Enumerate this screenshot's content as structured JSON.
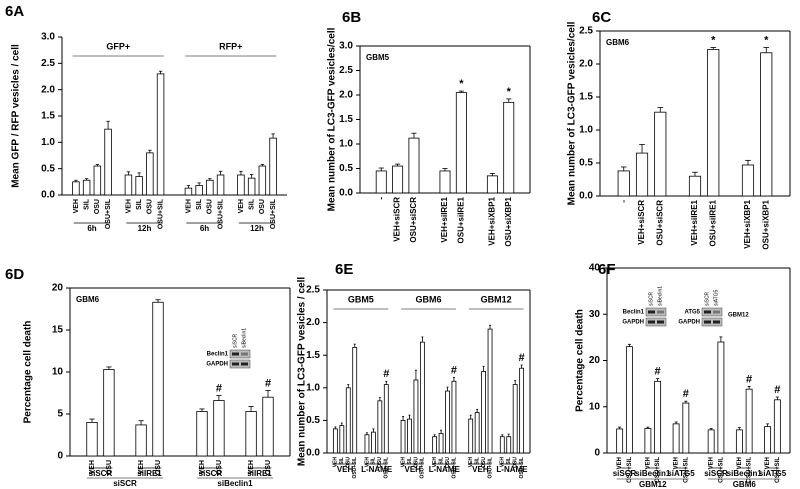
{
  "chart_data": [
    {
      "type": "bar",
      "title": "6A",
      "y_label": "Mean GFP / RFP vesicles / cell",
      "color": "#ffffff",
      "frame": false,
      "section_position": "top",
      "ylim": [
        0,
        3
      ],
      "yticks": [
        {
          "value": 0,
          "label": "0.0"
        },
        {
          "value": 0.5,
          "label": "0.5"
        },
        {
          "value": 1,
          "label": "1.0"
        },
        {
          "value": 1.5,
          "label": "1.5"
        },
        {
          "value": 2,
          "label": "2.0"
        },
        {
          "value": 2.5,
          "label": "2.5"
        },
        {
          "value": 3,
          "label": "3.0"
        }
      ],
      "sections": [
        {
          "label": "GFP+",
          "groups": [
            {
              "label": "6h",
              "categories": [
                "VEH",
                "SIL",
                "OSU",
                "OSU+SIL"
              ],
              "values": [
                0.25,
                0.28,
                0.55,
                1.25
              ],
              "errors": [
                0.03,
                0.03,
                0.03,
                0.15
              ]
            },
            {
              "label": "12h",
              "categories": [
                "VEH",
                "SIL",
                "OSU",
                "OSU+SIL"
              ],
              "values": [
                0.38,
                0.35,
                0.8,
                2.3
              ],
              "errors": [
                0.06,
                0.07,
                0.05,
                0.05
              ]
            }
          ]
        },
        {
          "label": "RFP+",
          "groups": [
            {
              "label": "6h",
              "categories": [
                "VEH",
                "SIL",
                "OSU",
                "OSU+SIL"
              ],
              "values": [
                0.13,
                0.18,
                0.28,
                0.38
              ],
              "errors": [
                0.05,
                0.05,
                0.03,
                0.07
              ]
            },
            {
              "label": "12h",
              "categories": [
                "VEH",
                "SIL",
                "OSU",
                "OSU+SIL"
              ],
              "values": [
                0.38,
                0.32,
                0.55,
                1.08
              ],
              "errors": [
                0.07,
                0.07,
                0.03,
                0.08
              ]
            }
          ]
        }
      ]
    },
    {
      "type": "bar",
      "title": "6B",
      "y_label": "Mean number of LC3-GFP vesicles/cell",
      "annotation": "GBM5",
      "color": "#ffffff",
      "frame": true,
      "ylim": [
        0,
        3
      ],
      "yticks": [
        {
          "value": 0,
          "label": "0.0"
        },
        {
          "value": 0.5,
          "label": "0.5"
        },
        {
          "value": 1,
          "label": "1.0"
        },
        {
          "value": 1.5,
          "label": "1.5"
        },
        {
          "value": 2,
          "label": "2.0"
        },
        {
          "value": 2.5,
          "label": "2.5"
        },
        {
          "value": 3,
          "label": "3.0"
        }
      ],
      "sections": [
        {
          "groups": [
            {
              "categories": [
                "-",
                "VEH+siSCR",
                "OSU+siSCR"
              ],
              "values": [
                0.45,
                0.55,
                1.12
              ],
              "errors": [
                0.06,
                0.04,
                0.1
              ],
              "markers": [
                null,
                null,
                null
              ]
            },
            {
              "categories": [
                "VEH+siIRE1",
                "OSU+siIRE1"
              ],
              "values": [
                0.45,
                2.05
              ],
              "errors": [
                0.05,
                0.03
              ],
              "markers": [
                null,
                "*"
              ]
            },
            {
              "categories": [
                "VEH+siXBP1",
                "OSU+siXBP1"
              ],
              "values": [
                0.35,
                1.85
              ],
              "errors": [
                0.05,
                0.07
              ],
              "markers": [
                null,
                "*"
              ]
            }
          ]
        }
      ]
    },
    {
      "type": "bar",
      "title": "6C",
      "y_label": "Mean number of LC3-GFP vesicles/cell",
      "annotation": "GBM6",
      "color": "#ffffff",
      "frame": true,
      "ylim": [
        0,
        2.5
      ],
      "yticks": [
        {
          "value": 0,
          "label": "0.0"
        },
        {
          "value": 0.5,
          "label": "0.5"
        },
        {
          "value": 1,
          "label": "1.0"
        },
        {
          "value": 1.5,
          "label": "1.5"
        },
        {
          "value": 2,
          "label": "2.0"
        },
        {
          "value": 2.5,
          "label": "2.5"
        }
      ],
      "sections": [
        {
          "groups": [
            {
              "categories": [
                "-",
                "VEH+siSCR",
                "OSU+siSCR"
              ],
              "values": [
                0.38,
                0.65,
                1.27
              ],
              "errors": [
                0.06,
                0.13,
                0.07
              ],
              "markers": [
                null,
                null,
                null
              ]
            },
            {
              "categories": [
                "VEH+siIRE1",
                "OSU+siIRE1"
              ],
              "values": [
                0.3,
                2.22
              ],
              "errors": [
                0.06,
                0.03
              ],
              "markers": [
                null,
                "*"
              ]
            },
            {
              "categories": [
                "VEH+siXBP1",
                "OSU+siXBP1"
              ],
              "values": [
                0.47,
                2.17
              ],
              "errors": [
                0.07,
                0.08
              ],
              "markers": [
                null,
                "*"
              ]
            }
          ]
        }
      ]
    },
    {
      "type": "bar",
      "title": "6D",
      "y_label": "Percentage cell death",
      "annotation": "GBM6",
      "color": "#ffffff",
      "frame": true,
      "section_position": "bottom",
      "ylim": [
        0,
        20
      ],
      "yticks": [
        0,
        5,
        10,
        15,
        20
      ],
      "insets": [
        {
          "lanes": [
            "siSCR",
            "siBeclin1"
          ],
          "rows": [
            "Beclin1",
            "GAPDH"
          ]
        }
      ],
      "sections": [
        {
          "label": "siSCR",
          "groups": [
            {
              "label": "siSCR",
              "categories": [
                "VEH",
                "OSU"
              ],
              "values": [
                4,
                10.3
              ],
              "errors": [
                0.4,
                0.3
              ],
              "markers": [
                null,
                null
              ]
            },
            {
              "label": "siIRE1",
              "categories": [
                "VEH",
                "OSU"
              ],
              "values": [
                3.7,
                18.3
              ],
              "errors": [
                0.5,
                0.3
              ],
              "markers": [
                null,
                null
              ]
            }
          ]
        },
        {
          "label": "siBeclin1",
          "groups": [
            {
              "label": "siSCR",
              "categories": [
                "VEH",
                "OSU"
              ],
              "values": [
                5.3,
                6.6
              ],
              "errors": [
                0.3,
                0.6
              ],
              "markers": [
                null,
                "#"
              ]
            },
            {
              "label": "siIRE1",
              "categories": [
                "VEH",
                "OSU"
              ],
              "values": [
                5.3,
                7
              ],
              "errors": [
                0.6,
                0.8
              ],
              "markers": [
                null,
                "#"
              ]
            }
          ]
        }
      ]
    },
    {
      "type": "bar",
      "title": "6E",
      "y_label": "Mean number of LC3-GFP vesicles / cell",
      "color": "#ffffff",
      "frame": true,
      "section_position": "top",
      "ylim": [
        0,
        2.5
      ],
      "yticks": [
        {
          "value": 0,
          "label": "0.0"
        },
        {
          "value": 0.5,
          "label": "0.5"
        },
        {
          "value": 1,
          "label": "1.0"
        },
        {
          "value": 1.5,
          "label": "1.5"
        },
        {
          "value": 2,
          "label": "2.0"
        },
        {
          "value": 2.5,
          "label": "2.5"
        }
      ],
      "sections": [
        {
          "label": "GBM5",
          "groups": [
            {
              "label": "VEH",
              "categories": [
                "VEH",
                "SIL",
                "OSU",
                "OSU+SIL"
              ],
              "values": [
                0.37,
                0.42,
                1.0,
                1.62
              ],
              "errors": [
                0.03,
                0.04,
                0.05,
                0.05
              ],
              "markers": [
                null,
                null,
                null,
                null
              ]
            },
            {
              "label": "L-NAME",
              "categories": [
                "VEH",
                "SIL",
                "OSU",
                "OSU+SIL"
              ],
              "values": [
                0.28,
                0.32,
                0.8,
                1.05
              ],
              "errors": [
                0.03,
                0.05,
                0.05,
                0.05
              ],
              "markers": [
                null,
                null,
                null,
                "#"
              ]
            }
          ]
        },
        {
          "label": "GBM6",
          "groups": [
            {
              "label": "VEH",
              "categories": [
                "VEH",
                "SIL",
                "OSU",
                "OSU+SIL"
              ],
              "values": [
                0.5,
                0.52,
                1.12,
                1.7
              ],
              "errors": [
                0.06,
                0.06,
                0.15,
                0.08
              ],
              "markers": [
                null,
                null,
                null,
                null
              ]
            },
            {
              "label": "L-NAME",
              "categories": [
                "VEH",
                "SIL",
                "OSU",
                "OSU+SIL"
              ],
              "values": [
                0.25,
                0.3,
                0.95,
                1.1
              ],
              "errors": [
                0.03,
                0.05,
                0.06,
                0.06
              ],
              "markers": [
                null,
                null,
                null,
                "#"
              ]
            }
          ]
        },
        {
          "label": "GBM12",
          "groups": [
            {
              "label": "VEH",
              "categories": [
                "VEH",
                "SIL",
                "OSU",
                "OSU+SIL"
              ],
              "values": [
                0.52,
                0.62,
                1.25,
                1.9
              ],
              "errors": [
                0.06,
                0.05,
                0.08,
                0.06
              ],
              "markers": [
                null,
                null,
                null,
                null
              ]
            },
            {
              "label": "L-NAME",
              "categories": [
                "VEH",
                "SIL",
                "OSU",
                "OSU+SIL"
              ],
              "values": [
                0.25,
                0.25,
                1.05,
                1.3
              ],
              "errors": [
                0.03,
                0.04,
                0.06,
                0.05
              ],
              "markers": [
                null,
                null,
                null,
                "#"
              ]
            }
          ]
        }
      ]
    },
    {
      "type": "bar",
      "title": "6F",
      "y_label": "Percentage cell death",
      "color": "#ffffff",
      "frame": true,
      "section_position": "bottom",
      "ylim": [
        0,
        40
      ],
      "yticks": [
        0,
        10,
        20,
        30,
        40
      ],
      "insets": [
        {
          "lanes": [
            "siSCR",
            "siBeclin1"
          ],
          "rows": [
            "Beclin1",
            "GAPDH"
          ]
        },
        {
          "lanes": [
            "siSCR",
            "siATG5"
          ],
          "rows": [
            "ATG5",
            "GAPDH"
          ],
          "label": "GBM12"
        }
      ],
      "sections": [
        {
          "label": "GBM12",
          "groups": [
            {
              "label": "siSCR",
              "categories": [
                "VEH",
                "OSU+SIL"
              ],
              "values": [
                5.2,
                23
              ],
              "errors": [
                0.4,
                0.5
              ],
              "markers": [
                null,
                null
              ]
            },
            {
              "label": "siBeclin1",
              "categories": [
                "VEH",
                "OSU+SIL"
              ],
              "values": [
                5.3,
                15.5
              ],
              "errors": [
                0.3,
                0.6
              ],
              "markers": [
                null,
                "#"
              ]
            },
            {
              "label": "siATG5",
              "categories": [
                "VEH",
                "OSU+SIL"
              ],
              "values": [
                6.3,
                10.8
              ],
              "errors": [
                0.4,
                0.4
              ],
              "markers": [
                null,
                "#"
              ]
            }
          ]
        },
        {
          "label": "GBM6",
          "groups": [
            {
              "label": "siSCR",
              "categories": [
                "VEH",
                "OSU+SIL"
              ],
              "values": [
                5,
                24
              ],
              "errors": [
                0.3,
                1.1
              ],
              "markers": [
                null,
                null
              ]
            },
            {
              "label": "siBeclin1",
              "categories": [
                "VEH",
                "OSU+SIL"
              ],
              "values": [
                5,
                13.8
              ],
              "errors": [
                0.5,
                0.6
              ],
              "markers": [
                null,
                "#"
              ]
            },
            {
              "label": "siATG5",
              "categories": [
                "VEH",
                "OSU+SIL"
              ],
              "values": [
                5.7,
                11.5
              ],
              "errors": [
                0.6,
                0.6
              ],
              "markers": [
                null,
                "#"
              ]
            }
          ]
        }
      ]
    }
  ]
}
